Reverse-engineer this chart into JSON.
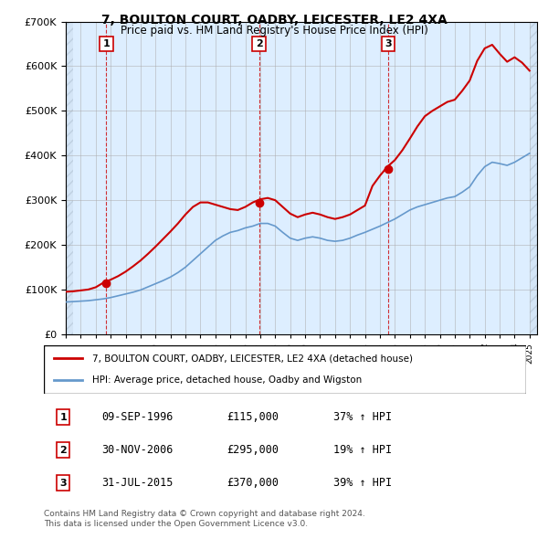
{
  "title": "7, BOULTON COURT, OADBY, LEICESTER, LE2 4XA",
  "subtitle": "Price paid vs. HM Land Registry's House Price Index (HPI)",
  "sale_dates": [
    "1996-09-09",
    "2006-11-30",
    "2015-07-31"
  ],
  "sale_prices": [
    115000,
    295000,
    370000
  ],
  "sale_labels": [
    "1",
    "2",
    "3"
  ],
  "sale_info": [
    "09-SEP-1996    £115,000    37% ↑ HPI",
    "30-NOV-2006    £295,000    19% ↑ HPI",
    "31-JUL-2015    £370,000    39% ↑ HPI"
  ],
  "legend_line1": "7, BOULTON COURT, OADBY, LEICESTER, LE2 4XA (detached house)",
  "legend_line2": "HPI: Average price, detached house, Oadby and Wigston",
  "footer1": "Contains HM Land Registry data © Crown copyright and database right 2024.",
  "footer2": "This data is licensed under the Open Government Licence v3.0.",
  "red_color": "#cc0000",
  "blue_color": "#6699cc",
  "bg_color": "#ddeeff",
  "hatch_color": "#ccddee",
  "grid_color": "#aabbcc",
  "ylim": [
    0,
    700000
  ],
  "xlim_start": 1994.0,
  "xlim_end": 2025.5
}
